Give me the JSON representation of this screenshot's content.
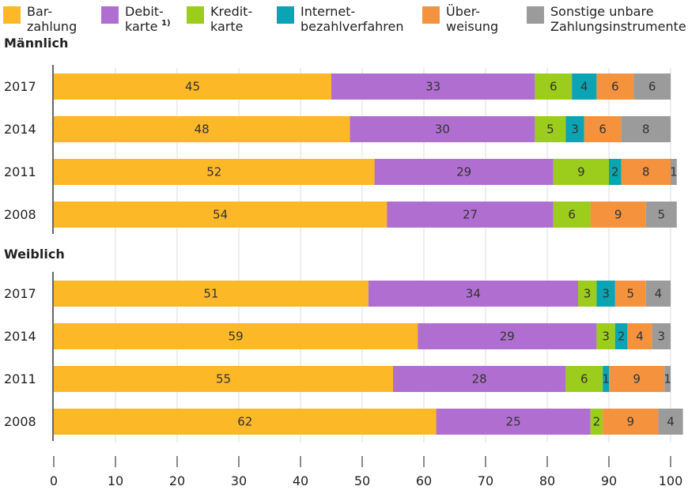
{
  "chart_data": [
    {
      "type": "bar",
      "orientation": "horizontal",
      "stacked": true,
      "title": "Männlich",
      "categories": [
        "2017",
        "2014",
        "2011",
        "2008"
      ],
      "xlim": [
        0,
        100
      ],
      "series": [
        {
          "name": "Bar-\nzahlung",
          "color": "#fdb827",
          "values": [
            45,
            48,
            52,
            54
          ]
        },
        {
          "name": "Debit-\nkarte",
          "note": "1)",
          "color": "#b06fd0",
          "values": [
            33,
            30,
            29,
            27
          ]
        },
        {
          "name": "Kredit-\nkarte",
          "color": "#9ccc1c",
          "values": [
            6,
            5,
            9,
            6
          ]
        },
        {
          "name": "Internet-\nbezahlverfahren",
          "color": "#0aa4b4",
          "values": [
            4,
            3,
            2,
            null
          ]
        },
        {
          "name": "Über-\nweisung",
          "color": "#f5923e",
          "values": [
            6,
            6,
            8,
            9
          ]
        },
        {
          "name": "Sonstige unbare\nZahlungsinstrumente",
          "color": "#9b9b9b",
          "values": [
            6,
            8,
            1,
            5
          ]
        }
      ]
    },
    {
      "type": "bar",
      "orientation": "horizontal",
      "stacked": true,
      "title": "Weiblich",
      "categories": [
        "2017",
        "2014",
        "2011",
        "2008"
      ],
      "xlim": [
        0,
        100
      ],
      "xticks": [
        0,
        10,
        20,
        30,
        40,
        50,
        60,
        70,
        80,
        90,
        100
      ],
      "series": [
        {
          "color": "#fdb827",
          "values": [
            51,
            59,
            55,
            62
          ]
        },
        {
          "color": "#b06fd0",
          "values": [
            34,
            29,
            28,
            25
          ]
        },
        {
          "color": "#9ccc1c",
          "values": [
            3,
            3,
            6,
            2
          ]
        },
        {
          "color": "#0aa4b4",
          "values": [
            3,
            2,
            1,
            null
          ]
        },
        {
          "color": "#f5923e",
          "values": [
            5,
            4,
            9,
            9
          ]
        },
        {
          "color": "#9b9b9b",
          "values": [
            4,
            3,
            1,
            4
          ]
        }
      ]
    }
  ]
}
